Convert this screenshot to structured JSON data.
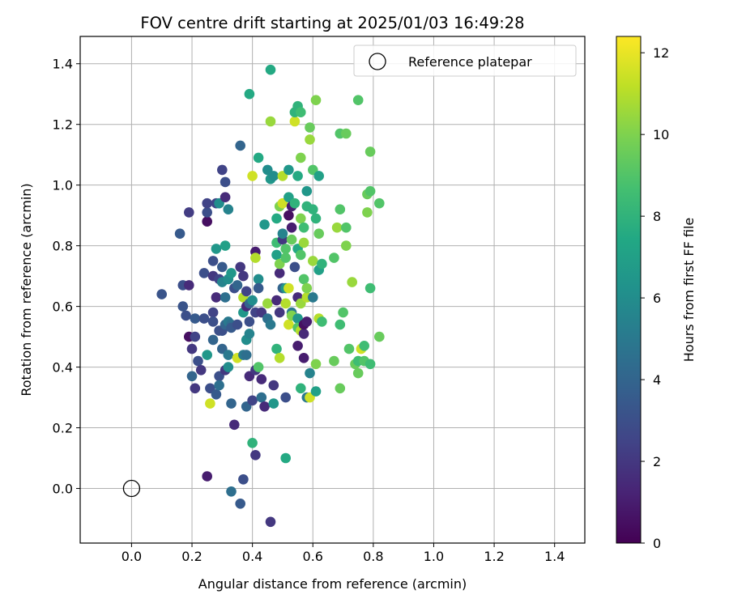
{
  "chart_data": {
    "type": "scatter",
    "title": "FOV centre drift starting at 2025/01/03 16:49:28",
    "xlabel": "Angular distance from reference (arcmin)",
    "ylabel": "Rotation from reference (arcmin)",
    "xlim": [
      -0.17,
      1.5
    ],
    "ylim": [
      -0.18,
      1.49
    ],
    "xticks": [
      0.0,
      0.2,
      0.4,
      0.6,
      0.8,
      1.0,
      1.2,
      1.4
    ],
    "yticks": [
      0.0,
      0.2,
      0.4,
      0.6,
      0.8,
      1.0,
      1.2,
      1.4
    ],
    "xtick_labels": [
      "0.0",
      "0.2",
      "0.4",
      "0.6",
      "0.8",
      "1.0",
      "1.2",
      "1.4"
    ],
    "ytick_labels": [
      "0.0",
      "0.2",
      "0.4",
      "0.6",
      "0.8",
      "1.0",
      "1.2",
      "1.4"
    ],
    "grid": true,
    "colormap": "viridis",
    "colorbar": {
      "label": "Hours from first FF file",
      "range": [
        0,
        12.4
      ],
      "ticks": [
        0,
        2,
        4,
        6,
        8,
        10,
        12
      ],
      "tick_labels": [
        "0",
        "2",
        "4",
        "6",
        "8",
        "10",
        "12"
      ]
    },
    "legend": {
      "placement": "top-right",
      "entries": [
        "Reference platepar"
      ]
    },
    "reference_point": {
      "x": 0.0,
      "y": 0.0
    },
    "points": [
      [
        0.1,
        0.64,
        3.2
      ],
      [
        0.16,
        0.84,
        3.5
      ],
      [
        0.17,
        0.67,
        3.0
      ],
      [
        0.17,
        0.6,
        3.2
      ],
      [
        0.18,
        0.57,
        3.0
      ],
      [
        0.19,
        0.91,
        2.2
      ],
      [
        0.19,
        0.67,
        1.5
      ],
      [
        0.19,
        0.5,
        0.5
      ],
      [
        0.2,
        0.46,
        2.0
      ],
      [
        0.2,
        0.37,
        4.0
      ],
      [
        0.21,
        0.56,
        3.5
      ],
      [
        0.21,
        0.5,
        2.5
      ],
      [
        0.21,
        0.33,
        2.0
      ],
      [
        0.22,
        0.42,
        3.0
      ],
      [
        0.23,
        0.39,
        2.0
      ],
      [
        0.24,
        0.71,
        3.0
      ],
      [
        0.24,
        0.56,
        3.0
      ],
      [
        0.25,
        0.44,
        6.5
      ],
      [
        0.25,
        0.88,
        0.5
      ],
      [
        0.25,
        0.91,
        3.0
      ],
      [
        0.25,
        0.94,
        2.5
      ],
      [
        0.25,
        0.04,
        1.0
      ],
      [
        0.26,
        0.33,
        3.0
      ],
      [
        0.26,
        0.28,
        11.5
      ],
      [
        0.27,
        0.75,
        3.0
      ],
      [
        0.27,
        0.7,
        2.0
      ],
      [
        0.27,
        0.58,
        2.5
      ],
      [
        0.27,
        0.55,
        3.0
      ],
      [
        0.27,
        0.49,
        4.0
      ],
      [
        0.28,
        0.31,
        3.5
      ],
      [
        0.28,
        0.79,
        6.5
      ],
      [
        0.28,
        0.94,
        2.5
      ],
      [
        0.28,
        0.63,
        1.5
      ],
      [
        0.29,
        0.69,
        2.5
      ],
      [
        0.29,
        0.37,
        3.0
      ],
      [
        0.29,
        0.34,
        4.5
      ],
      [
        0.29,
        0.52,
        3.0
      ],
      [
        0.29,
        0.94,
        6.0
      ],
      [
        0.3,
        1.05,
        2.5
      ],
      [
        0.3,
        0.73,
        3.5
      ],
      [
        0.3,
        0.52,
        5.0
      ],
      [
        0.3,
        0.46,
        4.0
      ],
      [
        0.3,
        0.68,
        5.5
      ],
      [
        0.3,
        0.52,
        3.0
      ],
      [
        0.31,
        0.39,
        2.0
      ],
      [
        0.31,
        1.01,
        3.0
      ],
      [
        0.31,
        0.96,
        1.5
      ],
      [
        0.31,
        0.8,
        7.0
      ],
      [
        0.31,
        0.63,
        4.5
      ],
      [
        0.31,
        0.54,
        4.0
      ],
      [
        0.32,
        0.44,
        5.0
      ],
      [
        0.32,
        0.4,
        6.0
      ],
      [
        0.32,
        0.55,
        5.0
      ],
      [
        0.32,
        0.92,
        5.5
      ],
      [
        0.32,
        0.69,
        6.0
      ],
      [
        0.33,
        0.71,
        6.5
      ],
      [
        0.33,
        -0.01,
        4.5
      ],
      [
        0.33,
        0.54,
        4.5
      ],
      [
        0.33,
        0.53,
        3.5
      ],
      [
        0.33,
        0.28,
        4.0
      ],
      [
        0.34,
        0.66,
        3.0
      ],
      [
        0.34,
        0.21,
        1.5
      ],
      [
        0.35,
        0.54,
        3.0
      ],
      [
        0.35,
        0.43,
        11.5
      ],
      [
        0.35,
        0.67,
        4.0
      ],
      [
        0.36,
        1.13,
        4.0
      ],
      [
        0.36,
        -0.05,
        3.5
      ],
      [
        0.36,
        0.73,
        2.0
      ],
      [
        0.37,
        0.7,
        2.0
      ],
      [
        0.37,
        0.58,
        6.5
      ],
      [
        0.37,
        0.44,
        5.0
      ],
      [
        0.37,
        0.63,
        11.0
      ],
      [
        0.37,
        0.03,
        3.0
      ],
      [
        0.38,
        0.65,
        2.5
      ],
      [
        0.38,
        0.49,
        6.0
      ],
      [
        0.38,
        0.27,
        4.0
      ],
      [
        0.38,
        0.44,
        4.5
      ],
      [
        0.38,
        0.6,
        1.5
      ],
      [
        0.39,
        0.55,
        3.0
      ],
      [
        0.39,
        0.51,
        5.5
      ],
      [
        0.39,
        0.61,
        4.0
      ],
      [
        0.39,
        1.3,
        7.5
      ],
      [
        0.39,
        0.37,
        1.5
      ],
      [
        0.4,
        0.29,
        2.5
      ],
      [
        0.4,
        0.15,
        8.0
      ],
      [
        0.4,
        0.62,
        6.0
      ],
      [
        0.4,
        1.03,
        11.5
      ],
      [
        0.41,
        0.58,
        2.5
      ],
      [
        0.41,
        0.78,
        1.0
      ],
      [
        0.41,
        0.76,
        11.0
      ],
      [
        0.41,
        0.39,
        2.0
      ],
      [
        0.41,
        0.11,
        2.0
      ],
      [
        0.42,
        1.09,
        7.5
      ],
      [
        0.42,
        0.4,
        9.0
      ],
      [
        0.42,
        0.69,
        6.0
      ],
      [
        0.42,
        0.66,
        3.5
      ],
      [
        0.43,
        0.58,
        2.0
      ],
      [
        0.43,
        0.3,
        4.5
      ],
      [
        0.43,
        0.36,
        1.5
      ],
      [
        0.44,
        0.87,
        6.5
      ],
      [
        0.44,
        0.27,
        1.5
      ],
      [
        0.45,
        1.05,
        6.0
      ],
      [
        0.45,
        0.61,
        10.5
      ],
      [
        0.45,
        0.56,
        4.5
      ],
      [
        0.46,
        1.38,
        7.5
      ],
      [
        0.46,
        1.21,
        10.5
      ],
      [
        0.46,
        1.02,
        6.5
      ],
      [
        0.46,
        -0.11,
        2.0
      ],
      [
        0.46,
        0.54,
        5.0
      ],
      [
        0.47,
        0.28,
        6.5
      ],
      [
        0.47,
        1.03,
        6.0
      ],
      [
        0.47,
        0.34,
        2.0
      ],
      [
        0.48,
        0.77,
        7.0
      ],
      [
        0.48,
        0.89,
        7.5
      ],
      [
        0.48,
        0.81,
        8.5
      ],
      [
        0.48,
        0.62,
        1.5
      ],
      [
        0.48,
        0.46,
        8.0
      ],
      [
        0.49,
        0.58,
        2.0
      ],
      [
        0.49,
        0.43,
        11.0
      ],
      [
        0.49,
        0.71,
        1.5
      ],
      [
        0.49,
        0.93,
        10.0
      ],
      [
        0.49,
        0.74,
        10.0
      ],
      [
        0.5,
        0.66,
        4.0
      ],
      [
        0.5,
        0.94,
        11.5
      ],
      [
        0.5,
        1.03,
        11.0
      ],
      [
        0.5,
        0.82,
        2.0
      ],
      [
        0.5,
        0.84,
        5.5
      ],
      [
        0.51,
        0.1,
        7.5
      ],
      [
        0.51,
        0.66,
        6.5
      ],
      [
        0.51,
        0.76,
        9.0
      ],
      [
        0.51,
        0.79,
        9.0
      ],
      [
        0.51,
        0.3,
        3.0
      ],
      [
        0.51,
        0.61,
        11.0
      ],
      [
        0.52,
        1.05,
        6.5
      ],
      [
        0.52,
        0.96,
        7.0
      ],
      [
        0.52,
        0.54,
        11.5
      ],
      [
        0.52,
        0.66,
        11.5
      ],
      [
        0.52,
        0.9,
        0.5
      ],
      [
        0.53,
        0.93,
        1.0
      ],
      [
        0.53,
        0.86,
        1.0
      ],
      [
        0.53,
        0.82,
        9.5
      ],
      [
        0.53,
        0.58,
        5.0
      ],
      [
        0.53,
        0.57,
        10.0
      ],
      [
        0.54,
        0.73,
        3.0
      ],
      [
        0.54,
        0.94,
        8.0
      ],
      [
        0.54,
        1.21,
        11.5
      ],
      [
        0.54,
        1.24,
        8.0
      ],
      [
        0.55,
        1.26,
        8.0
      ],
      [
        0.55,
        1.03,
        7.5
      ],
      [
        0.55,
        0.79,
        7.5
      ],
      [
        0.55,
        0.63,
        1.5
      ],
      [
        0.55,
        0.56,
        6.5
      ],
      [
        0.55,
        0.53,
        9.0
      ],
      [
        0.55,
        0.47,
        1.0
      ],
      [
        0.56,
        0.52,
        11.0
      ],
      [
        0.56,
        0.61,
        10.5
      ],
      [
        0.56,
        0.89,
        10.0
      ],
      [
        0.56,
        1.24,
        8.5
      ],
      [
        0.56,
        1.09,
        10.0
      ],
      [
        0.56,
        0.77,
        9.0
      ],
      [
        0.56,
        0.33,
        8.0
      ],
      [
        0.57,
        0.81,
        10.5
      ],
      [
        0.57,
        0.69,
        9.0
      ],
      [
        0.57,
        0.51,
        1.5
      ],
      [
        0.57,
        0.43,
        1.0
      ],
      [
        0.57,
        0.54,
        0.5
      ],
      [
        0.57,
        0.86,
        8.5
      ],
      [
        0.58,
        0.63,
        11.0
      ],
      [
        0.58,
        0.98,
        6.5
      ],
      [
        0.58,
        0.93,
        8.0
      ],
      [
        0.58,
        0.66,
        10.0
      ],
      [
        0.58,
        0.55,
        1.0
      ],
      [
        0.58,
        0.3,
        5.0
      ],
      [
        0.59,
        1.19,
        9.5
      ],
      [
        0.59,
        1.15,
        10.5
      ],
      [
        0.59,
        0.3,
        11.5
      ],
      [
        0.59,
        0.38,
        5.5
      ],
      [
        0.6,
        0.63,
        5.0
      ],
      [
        0.6,
        0.75,
        10.5
      ],
      [
        0.6,
        0.92,
        8.0
      ],
      [
        0.6,
        1.05,
        9.0
      ],
      [
        0.61,
        1.28,
        10.0
      ],
      [
        0.61,
        0.89,
        8.0
      ],
      [
        0.61,
        0.41,
        10.0
      ],
      [
        0.61,
        0.32,
        7.0
      ],
      [
        0.62,
        0.56,
        11.0
      ],
      [
        0.62,
        0.84,
        9.5
      ],
      [
        0.62,
        1.03,
        7.0
      ],
      [
        0.62,
        0.72,
        7.0
      ],
      [
        0.63,
        0.55,
        8.5
      ],
      [
        0.63,
        0.74,
        8.0
      ],
      [
        0.67,
        0.42,
        9.5
      ],
      [
        0.67,
        0.76,
        9.0
      ],
      [
        0.68,
        0.86,
        10.5
      ],
      [
        0.69,
        1.17,
        9.0
      ],
      [
        0.69,
        0.92,
        9.0
      ],
      [
        0.69,
        0.54,
        8.5
      ],
      [
        0.69,
        0.33,
        9.5
      ],
      [
        0.7,
        0.58,
        9.0
      ],
      [
        0.71,
        0.8,
        10.0
      ],
      [
        0.71,
        1.17,
        9.5
      ],
      [
        0.71,
        0.86,
        9.0
      ],
      [
        0.72,
        0.46,
        9.0
      ],
      [
        0.73,
        0.68,
        10.5
      ],
      [
        0.74,
        0.41,
        9.5
      ],
      [
        0.75,
        1.28,
        9.0
      ],
      [
        0.75,
        0.42,
        8.5
      ],
      [
        0.75,
        0.38,
        9.5
      ],
      [
        0.76,
        0.46,
        11.5
      ],
      [
        0.77,
        0.47,
        8.5
      ],
      [
        0.77,
        0.42,
        9.0
      ],
      [
        0.78,
        0.97,
        9.5
      ],
      [
        0.78,
        0.91,
        10.0
      ],
      [
        0.79,
        1.11,
        9.5
      ],
      [
        0.79,
        0.98,
        9.0
      ],
      [
        0.79,
        0.66,
        8.5
      ],
      [
        0.79,
        0.41,
        8.5
      ],
      [
        0.82,
        0.94,
        9.0
      ],
      [
        0.82,
        0.5,
        9.5
      ]
    ]
  }
}
